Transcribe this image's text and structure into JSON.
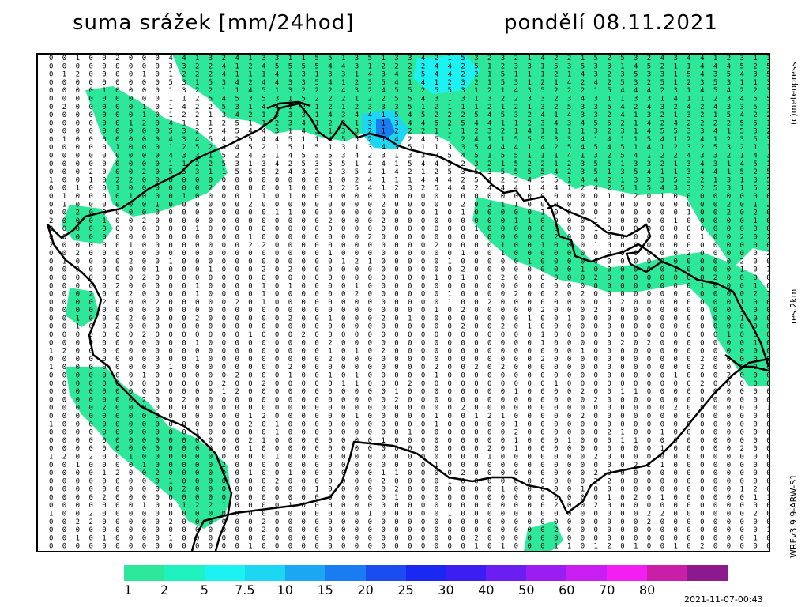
{
  "header": {
    "title": "suma srážek [mm/24hod]",
    "date": "pondělí 08.11.2021"
  },
  "side_labels": {
    "copyright": "(c)meteopress",
    "resolution": "res.2km",
    "model": "WRFv3.9.9-ARW-S1"
  },
  "timestamp": "2021-11-07-00:43",
  "legend": {
    "colors": [
      "#2ee89a",
      "#1ff2be",
      "#1cf2f2",
      "#1cd6f2",
      "#1aa8f2",
      "#1a7cf2",
      "#1a4cf2",
      "#1a28f2",
      "#3c1ef2",
      "#6a1ef2",
      "#9a1ef2",
      "#c81ef2",
      "#f21ef2",
      "#c81ea8",
      "#8c1a8c"
    ],
    "labels": [
      "1",
      "2",
      "5",
      "7.5",
      "10",
      "15",
      "20",
      "25",
      "30",
      "40",
      "50",
      "60",
      "70",
      "80"
    ]
  },
  "map": {
    "precip_color": "#2ee89a",
    "heavy_color": "#1cd6f2",
    "peak_color": "#1a7cf2",
    "border_color": "#000000"
  }
}
